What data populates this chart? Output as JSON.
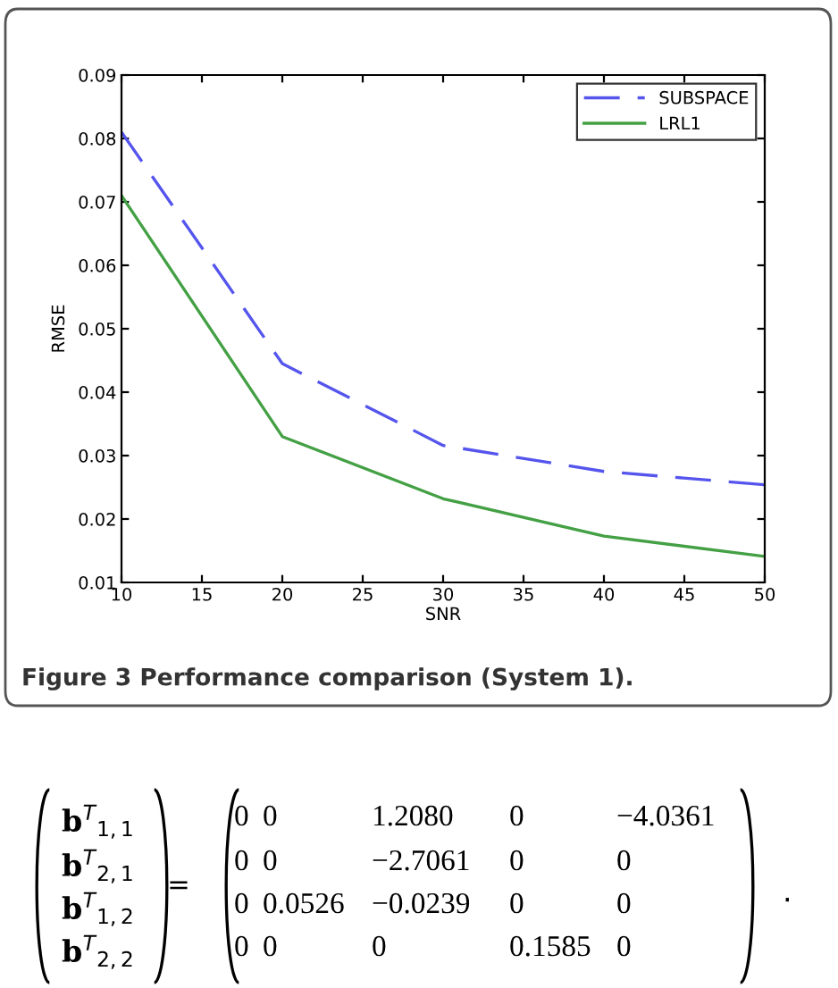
{
  "chart_data": {
    "type": "line",
    "xlabel": "SNR",
    "ylabel": "RMSE",
    "x": [
      10,
      20,
      30,
      40,
      50
    ],
    "series": [
      {
        "name": "SUBSPACE",
        "color": "#5555ee",
        "values": [
          0.081,
          0.0445,
          0.0316,
          0.0275,
          0.0254
        ],
        "line_style": "dashed"
      },
      {
        "name": "LRL1",
        "color": "#44a044",
        "values": [
          0.071,
          0.033,
          0.0232,
          0.0173,
          0.0141
        ],
        "line_style": "solid"
      }
    ],
    "xlim": [
      10,
      50
    ],
    "xticks": [
      10,
      15,
      20,
      25,
      30,
      35,
      40,
      45,
      50
    ],
    "ylim": [
      0.01,
      0.09
    ],
    "yticks": [
      0.01,
      0.02,
      0.03,
      0.04,
      0.05,
      0.06,
      0.07,
      0.08,
      0.09
    ],
    "grid": false,
    "legend": "top right",
    "marker": "none",
    "annotations": [
      "Figure 3 Performance comparison (System 1).",
      "b$^{T}$$_{1,1}$",
      "b$^{T}$$_{2,1}$",
      "b$^{T}$$_{1,2}$",
      "b$^{T}$$_{2,2}$",
      "=",
      "0 0 1.2080 0 −4.0361",
      "0 0 −2.7061 0 0",
      "0 0.0526 −0.0239 0 0",
      "0 0 0 0.1585 0",
      "."
    ]
  }
}
